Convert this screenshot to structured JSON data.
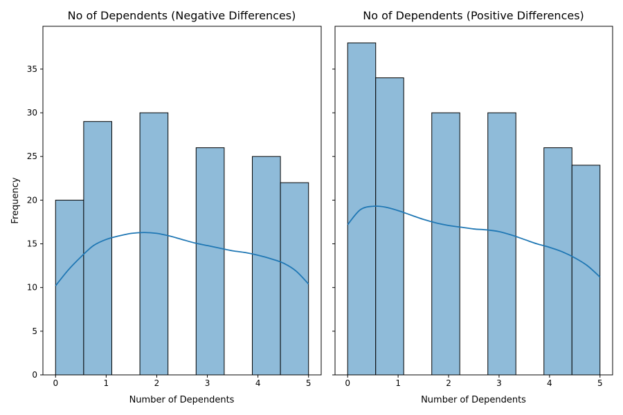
{
  "chart_data": [
    {
      "type": "bar",
      "title": "No of Dependents (Negative Differences)",
      "xlabel": "Number of Dependents",
      "ylabel": "Frequency",
      "xlim": [
        -0.25,
        5.25
      ],
      "ylim": [
        0,
        39.9
      ],
      "xticks": [
        0,
        1,
        2,
        3,
        4,
        5
      ],
      "yticks": [
        0,
        5,
        10,
        15,
        20,
        25,
        30,
        35
      ],
      "bin_width": 0.5556,
      "bins": [
        {
          "x0": 0.0,
          "x1": 0.5556,
          "value": 20
        },
        {
          "x0": 0.5556,
          "x1": 1.1111,
          "value": 29
        },
        {
          "x0": 1.1111,
          "x1": 1.6667,
          "value": 0
        },
        {
          "x0": 1.6667,
          "x1": 2.2222,
          "value": 30
        },
        {
          "x0": 2.2222,
          "x1": 2.7778,
          "value": 0
        },
        {
          "x0": 2.7778,
          "x1": 3.3333,
          "value": 26
        },
        {
          "x0": 3.3333,
          "x1": 3.8889,
          "value": 0
        },
        {
          "x0": 3.8889,
          "x1": 4.4444,
          "value": 25
        },
        {
          "x0": 4.4444,
          "x1": 5.0,
          "value": 22
        }
      ],
      "kde": {
        "x": [
          0,
          0.25,
          0.5,
          0.75,
          1.0,
          1.25,
          1.5,
          1.75,
          2.0,
          2.25,
          2.5,
          2.75,
          3.0,
          3.25,
          3.5,
          3.75,
          4.0,
          4.25,
          4.5,
          4.75,
          5.0
        ],
        "y": [
          10.2,
          12.0,
          13.5,
          14.8,
          15.5,
          15.9,
          16.2,
          16.3,
          16.2,
          15.9,
          15.5,
          15.1,
          14.8,
          14.5,
          14.2,
          14.0,
          13.7,
          13.3,
          12.8,
          11.9,
          10.4
        ]
      },
      "colors": {
        "bar": "#8fbbd9",
        "edge": "#000000",
        "kde": "#1f77b4"
      }
    },
    {
      "type": "bar",
      "title": "No of Dependents (Positive Differences)",
      "xlabel": "Number of Dependents",
      "ylabel": "",
      "xlim": [
        -0.25,
        5.25
      ],
      "ylim": [
        0,
        39.9
      ],
      "xticks": [
        0,
        1,
        2,
        3,
        4,
        5
      ],
      "yticks": [
        0,
        5,
        10,
        15,
        20,
        25,
        30,
        35
      ],
      "bin_width": 0.5556,
      "bins": [
        {
          "x0": 0.0,
          "x1": 0.5556,
          "value": 38
        },
        {
          "x0": 0.5556,
          "x1": 1.1111,
          "value": 34
        },
        {
          "x0": 1.1111,
          "x1": 1.6667,
          "value": 0
        },
        {
          "x0": 1.6667,
          "x1": 2.2222,
          "value": 30
        },
        {
          "x0": 2.2222,
          "x1": 2.7778,
          "value": 0
        },
        {
          "x0": 2.7778,
          "x1": 3.3333,
          "value": 30
        },
        {
          "x0": 3.3333,
          "x1": 3.8889,
          "value": 0
        },
        {
          "x0": 3.8889,
          "x1": 4.4444,
          "value": 26
        },
        {
          "x0": 4.4444,
          "x1": 5.0,
          "value": 24
        }
      ],
      "kde": {
        "x": [
          0,
          0.25,
          0.5,
          0.75,
          1.0,
          1.25,
          1.5,
          1.75,
          2.0,
          2.25,
          2.5,
          2.75,
          3.0,
          3.25,
          3.5,
          3.75,
          4.0,
          4.25,
          4.5,
          4.75,
          5.0
        ],
        "y": [
          17.2,
          18.9,
          19.3,
          19.2,
          18.8,
          18.3,
          17.8,
          17.4,
          17.1,
          16.9,
          16.7,
          16.6,
          16.4,
          16.0,
          15.5,
          15.0,
          14.6,
          14.1,
          13.4,
          12.5,
          11.2
        ]
      },
      "colors": {
        "bar": "#8fbbd9",
        "edge": "#000000",
        "kde": "#1f77b4"
      }
    }
  ]
}
